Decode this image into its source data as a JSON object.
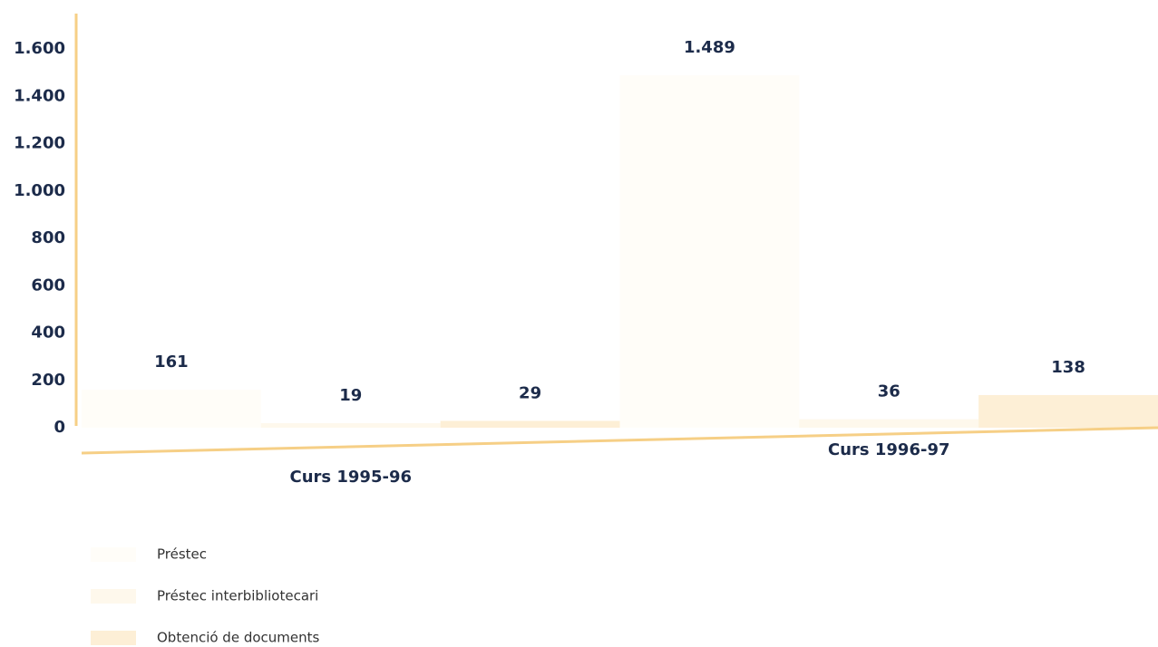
{
  "chart_data": {
    "type": "bar",
    "categories": [
      "Curs 1995-96",
      "Curs 1996-97"
    ],
    "series": [
      {
        "name": "Préstec",
        "color": "#fffdf8",
        "values": [
          161,
          1489
        ],
        "value_labels": [
          "161",
          "1.489"
        ]
      },
      {
        "name": "Préstec interbibliotecari",
        "color": "#fef8ec",
        "values": [
          19,
          36
        ],
        "value_labels": [
          "19",
          "36"
        ]
      },
      {
        "name": "Obtenció de documents",
        "color": "#fdefd6",
        "values": [
          29,
          138
        ],
        "value_labels": [
          "29",
          "138"
        ]
      }
    ],
    "ylim": [
      0,
      1750
    ],
    "yticks": [
      0,
      200,
      400,
      600,
      800,
      {
        "value": 1000,
        "label": "1.000"
      },
      {
        "value": 1200,
        "label": "1.200"
      },
      {
        "value": 1400,
        "label": "1.400"
      },
      {
        "value": 1600,
        "label": "1.600"
      }
    ],
    "axis_color": "#f6cf86"
  }
}
